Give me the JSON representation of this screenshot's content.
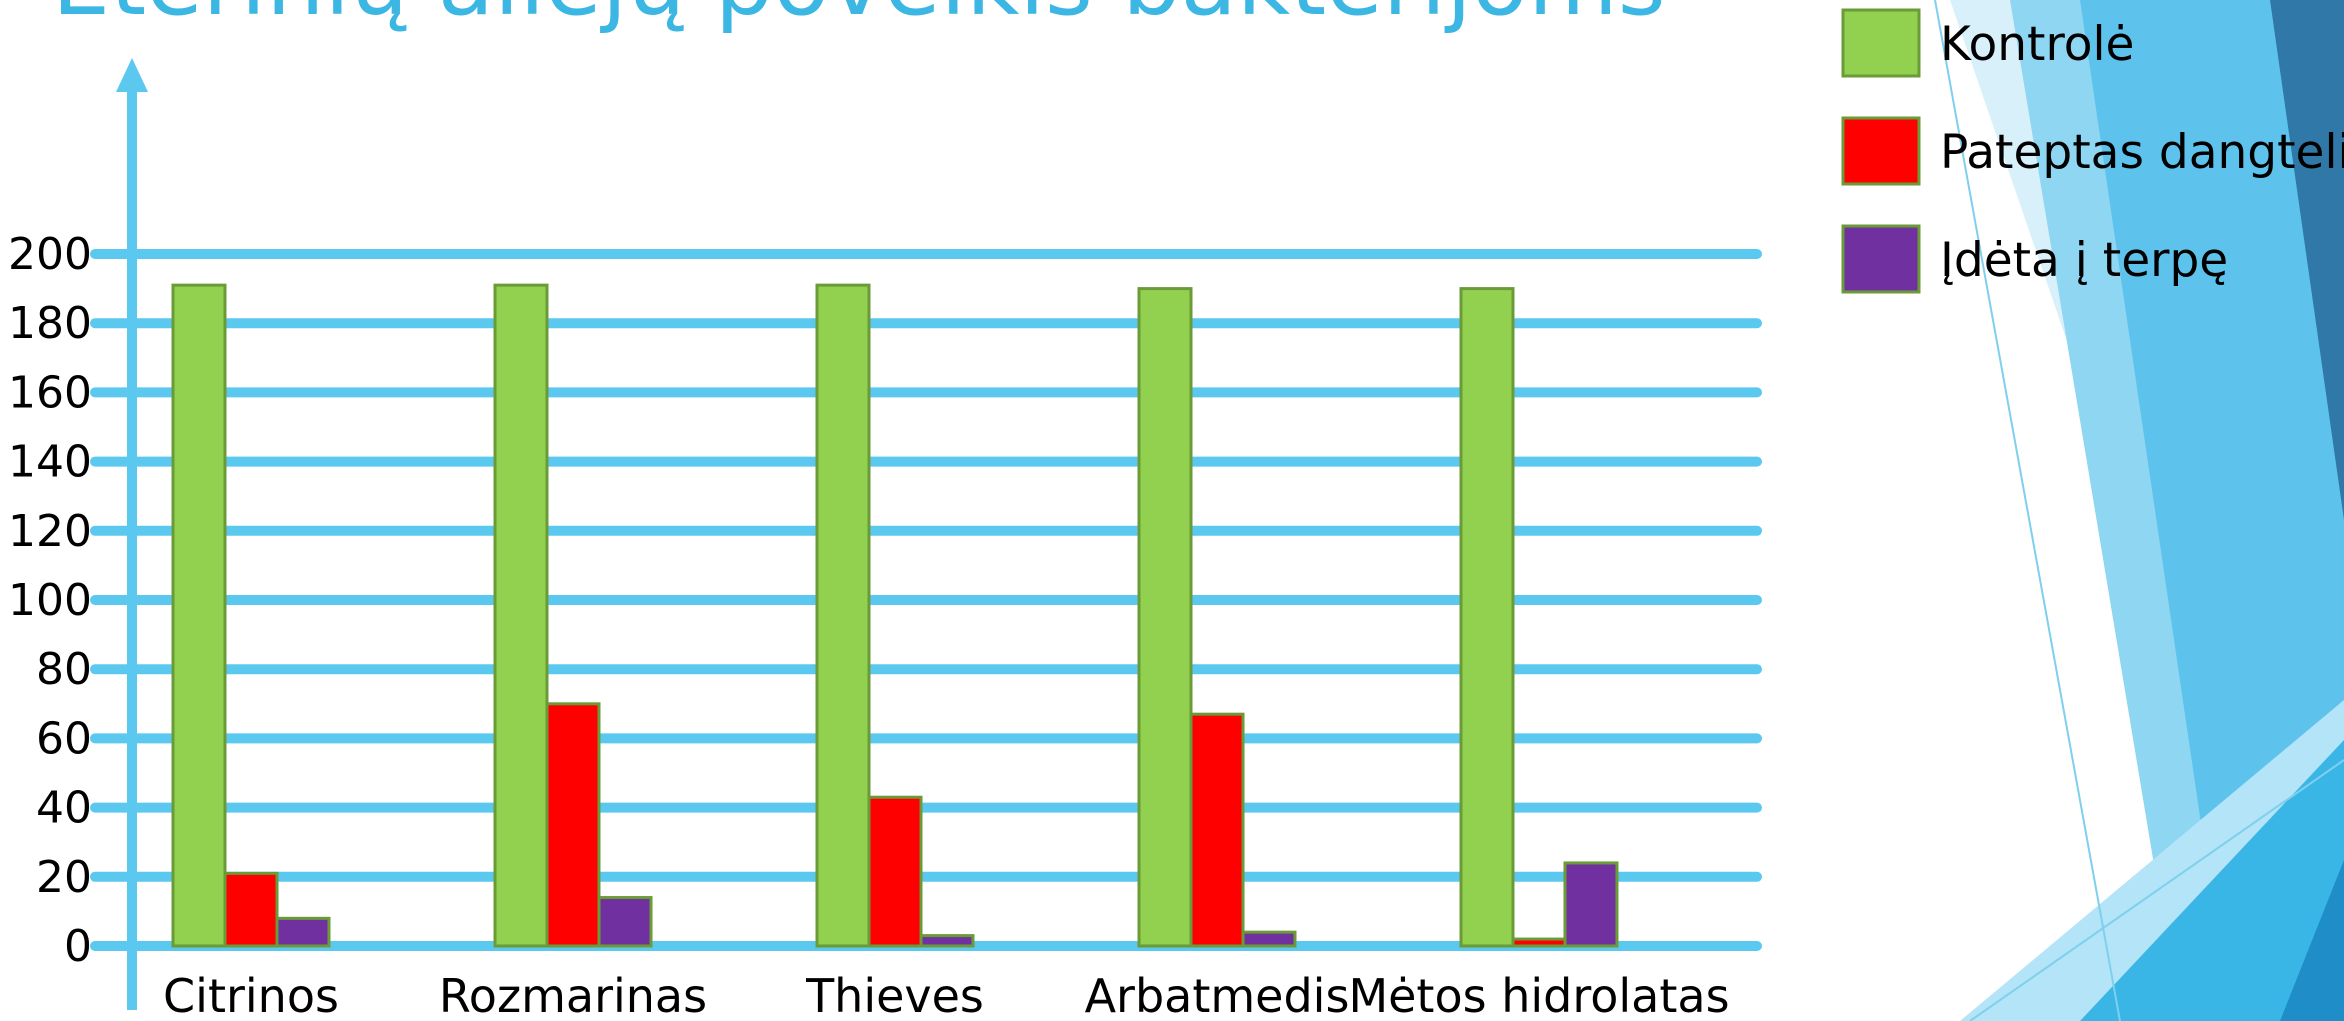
{
  "chart_data": {
    "type": "bar",
    "title": "Eterinių aliejų poveikis bakterijoms",
    "categories": [
      "Citrinos",
      "Rozmarinas",
      "Thieves",
      "Arbatmedis",
      "Mėtos hidrolatas"
    ],
    "series": [
      {
        "name": "Kontrolė",
        "color": "#92d050",
        "values": [
          191,
          191,
          191,
          190,
          190
        ]
      },
      {
        "name": "Pateptas dangtelis",
        "color": "#ff0000",
        "values": [
          21,
          70,
          43,
          67,
          2
        ]
      },
      {
        "name": "Įdėta į terpę",
        "color": "#7030a0",
        "values": [
          8,
          14,
          3,
          4,
          24
        ]
      }
    ],
    "ylim": [
      0,
      200
    ],
    "yticks": [
      0,
      20,
      40,
      60,
      80,
      100,
      120,
      140,
      160,
      180,
      200
    ],
    "grid": true,
    "legend": "top-right"
  }
}
